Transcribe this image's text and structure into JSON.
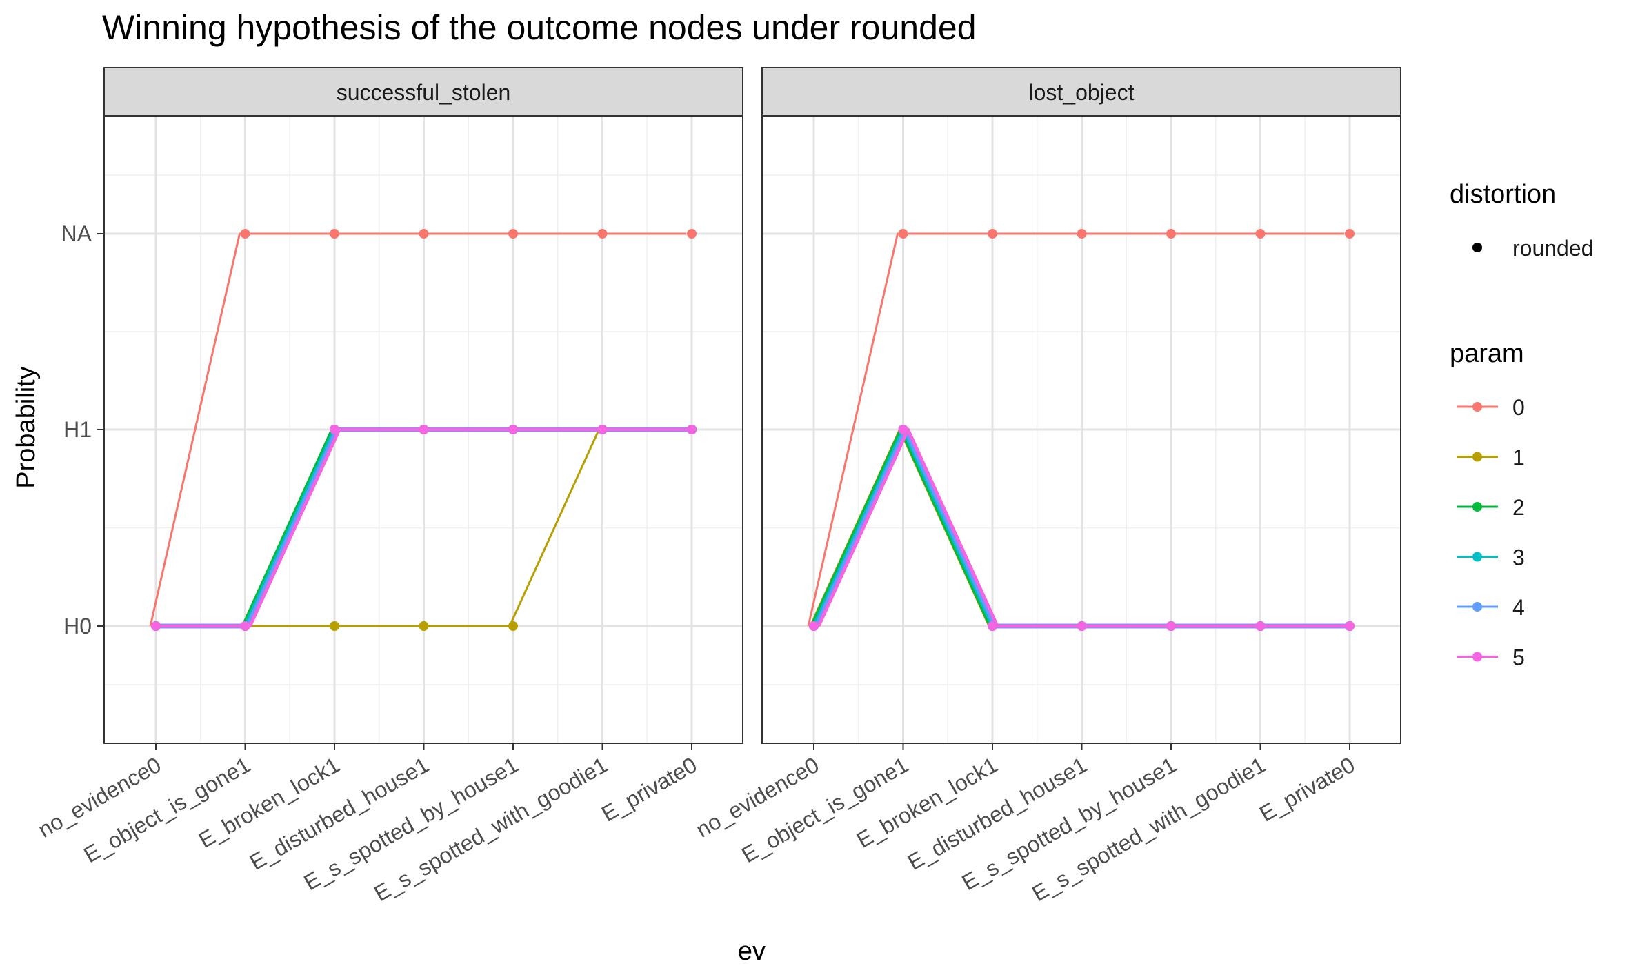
{
  "chart_data": {
    "type": "line",
    "title": "Winning hypothesis of the outcome nodes under rounded",
    "xlabel": "ev",
    "ylabel": "Probability",
    "y_categories": [
      "H0",
      "H1",
      "NA"
    ],
    "x": [
      "no_evidence0",
      "E_object_is_gone1",
      "E_broken_lock1",
      "E_disturbed_house1",
      "E_s_spotted_by_house1",
      "E_s_spotted_with_goodie1",
      "E_private0"
    ],
    "grid": true,
    "legend_position": "right",
    "legends": [
      {
        "title": "distortion",
        "entries": [
          {
            "label": "rounded",
            "color": "#000000"
          }
        ]
      },
      {
        "title": "param",
        "entries": [
          {
            "label": "0",
            "color": "#F8766D"
          },
          {
            "label": "1",
            "color": "#B79F00"
          },
          {
            "label": "2",
            "color": "#00BA38"
          },
          {
            "label": "3",
            "color": "#00BFC4"
          },
          {
            "label": "4",
            "color": "#619CFF"
          },
          {
            "label": "5",
            "color": "#F564E3"
          }
        ]
      }
    ],
    "facets": [
      {
        "title": "successful_stolen",
        "series": [
          {
            "name": "0",
            "values": [
              "H0",
              "NA",
              "NA",
              "NA",
              "NA",
              "NA",
              "NA"
            ]
          },
          {
            "name": "1",
            "values": [
              "H0",
              "H0",
              "H0",
              "H0",
              "H0",
              "H1",
              "H1"
            ]
          },
          {
            "name": "2",
            "values": [
              "H0",
              "H0",
              "H1",
              "H1",
              "H1",
              "H1",
              "H1"
            ]
          },
          {
            "name": "3",
            "values": [
              "H0",
              "H0",
              "H1",
              "H1",
              "H1",
              "H1",
              "H1"
            ]
          },
          {
            "name": "4",
            "values": [
              "H0",
              "H0",
              "H1",
              "H1",
              "H1",
              "H1",
              "H1"
            ]
          },
          {
            "name": "5",
            "values": [
              "H0",
              "H0",
              "H1",
              "H1",
              "H1",
              "H1",
              "H1"
            ]
          }
        ]
      },
      {
        "title": "lost_object",
        "series": [
          {
            "name": "0",
            "values": [
              "H0",
              "NA",
              "NA",
              "NA",
              "NA",
              "NA",
              "NA"
            ]
          },
          {
            "name": "1",
            "values": [
              "H0",
              "H1",
              "H0",
              "H0",
              "H0",
              "H0",
              "H0"
            ]
          },
          {
            "name": "2",
            "values": [
              "H0",
              "H1",
              "H0",
              "H0",
              "H0",
              "H0",
              "H0"
            ]
          },
          {
            "name": "3",
            "values": [
              "H0",
              "H1",
              "H0",
              "H0",
              "H0",
              "H0",
              "H0"
            ]
          },
          {
            "name": "4",
            "values": [
              "H0",
              "H1",
              "H0",
              "H0",
              "H0",
              "H0",
              "H0"
            ]
          },
          {
            "name": "5",
            "values": [
              "H0",
              "H1",
              "H0",
              "H0",
              "H0",
              "H0",
              "H0"
            ]
          }
        ]
      }
    ]
  }
}
